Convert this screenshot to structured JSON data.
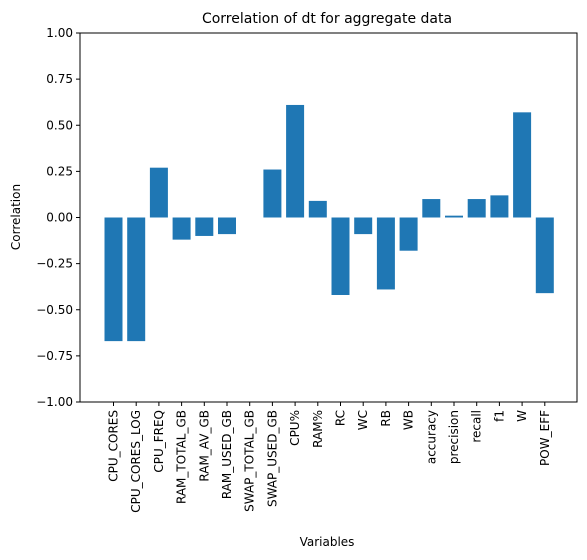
{
  "chart_data": {
    "type": "bar",
    "title": "Correlation of dt for aggregate data",
    "xlabel": "Variables",
    "ylabel": "Correlation",
    "ylim": [
      -1.0,
      1.0
    ],
    "yticks": [
      "−1.00",
      "−0.75",
      "−0.50",
      "−0.25",
      "0.00",
      "0.25",
      "0.50",
      "0.75",
      "1.00"
    ],
    "ytick_values": [
      -1.0,
      -0.75,
      -0.5,
      -0.25,
      0.0,
      0.25,
      0.5,
      0.75,
      1.0
    ],
    "grid": false,
    "bar_color": "#1f77b4",
    "categories": [
      "CPU_CORES",
      "CPU_CORES_LOG",
      "CPU_FREQ",
      "RAM_TOTAL_GB",
      "RAM_AV_GB",
      "RAM_USED_GB",
      "SWAP_TOTAL_GB",
      "SWAP_USED_GB",
      "CPU%",
      "RAM%",
      "RC",
      "WC",
      "RB",
      "WB",
      "accuracy",
      "precision",
      "recall",
      "f1",
      "W",
      "POW_EFF"
    ],
    "values": [
      -0.67,
      -0.67,
      0.27,
      -0.12,
      -0.1,
      -0.09,
      0.0,
      0.26,
      0.61,
      0.09,
      -0.42,
      -0.09,
      -0.39,
      -0.18,
      0.1,
      0.01,
      0.1,
      0.12,
      0.57,
      -0.41
    ]
  }
}
